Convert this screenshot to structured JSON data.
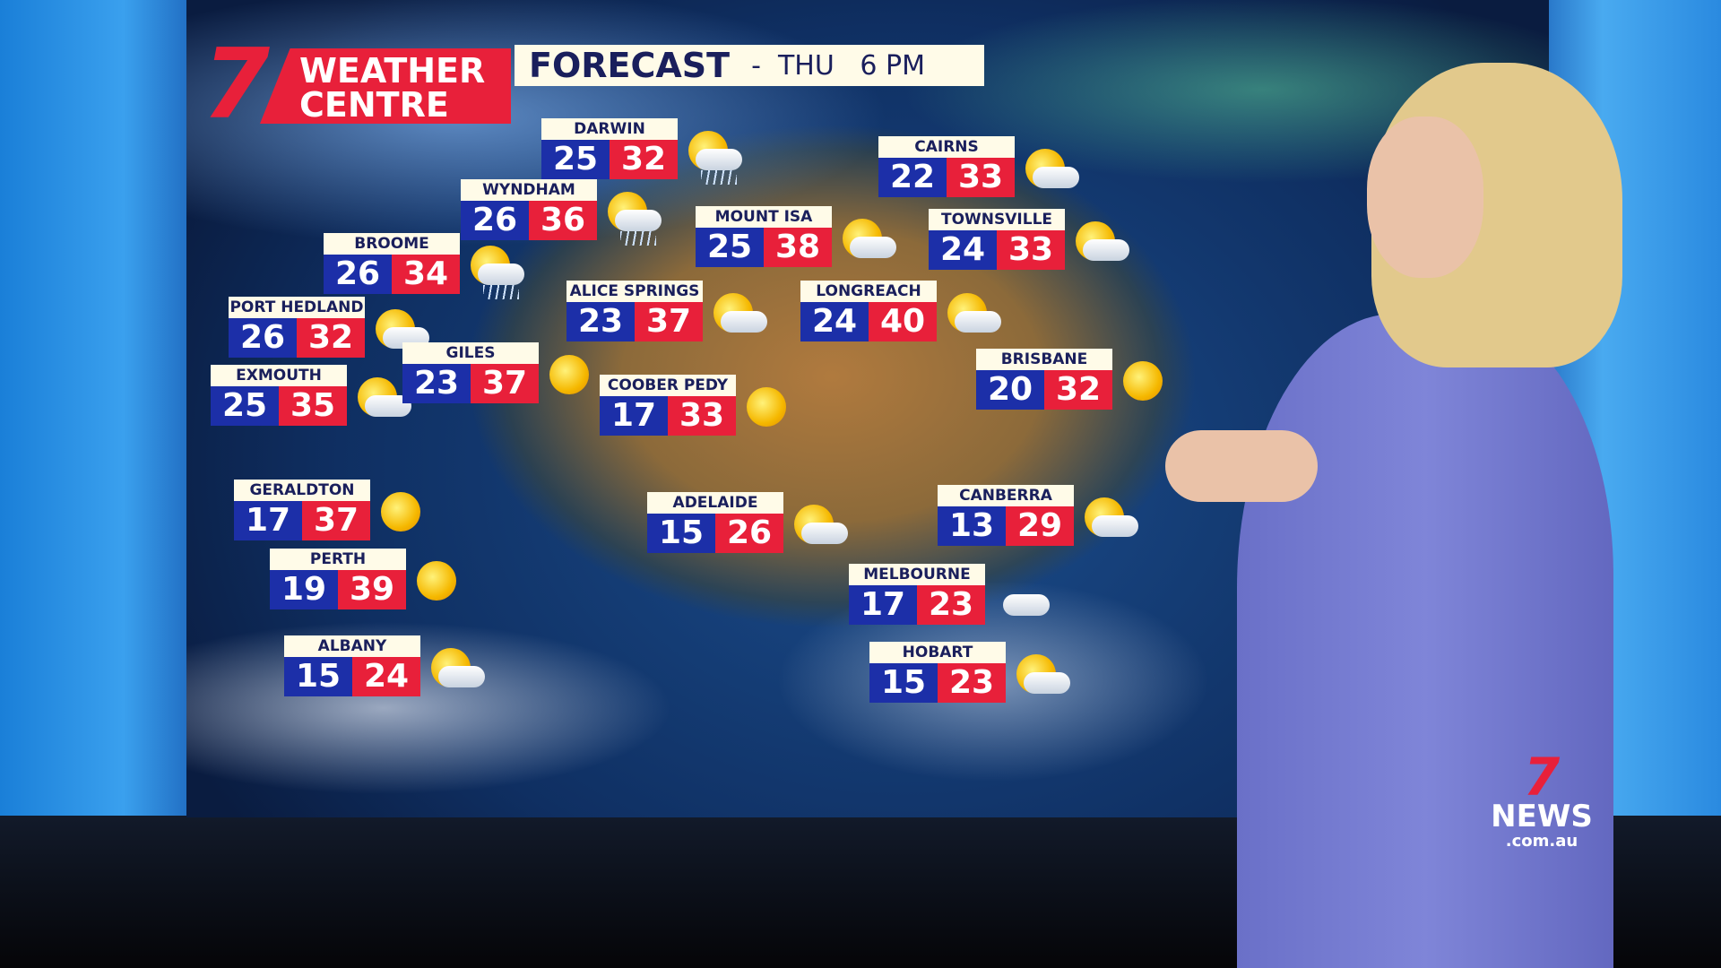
{
  "header": {
    "brand_numeral": "7",
    "brand_line1": "WEATHER",
    "brand_line2": "CENTRE",
    "title": "FORECAST",
    "subtitle": "-  THU   6 PM"
  },
  "colors": {
    "min_temp": "#1c2fa8",
    "max_temp": "#e8203a",
    "label_bg": "#fffbe8"
  },
  "cities": [
    {
      "name": "DARWIN",
      "min": "25",
      "max": "32",
      "icon": "sun-cloud-rain-icon"
    },
    {
      "name": "WYNDHAM",
      "min": "26",
      "max": "36",
      "icon": "sun-cloud-rain-icon"
    },
    {
      "name": "BROOME",
      "min": "26",
      "max": "34",
      "icon": "sun-cloud-rain-icon"
    },
    {
      "name": "PORT HEDLAND",
      "min": "26",
      "max": "32",
      "icon": "sun-cloud-icon"
    },
    {
      "name": "EXMOUTH",
      "min": "25",
      "max": "35",
      "icon": "sun-cloud-icon"
    },
    {
      "name": "GILES",
      "min": "23",
      "max": "37",
      "icon": "sun-icon"
    },
    {
      "name": "ALICE SPRINGS",
      "min": "23",
      "max": "37",
      "icon": "sun-cloud-icon"
    },
    {
      "name": "MOUNT ISA",
      "min": "25",
      "max": "38",
      "icon": "sun-cloud-icon"
    },
    {
      "name": "CAIRNS",
      "min": "22",
      "max": "33",
      "icon": "sun-cloud-icon"
    },
    {
      "name": "TOWNSVILLE",
      "min": "24",
      "max": "33",
      "icon": "sun-cloud-icon"
    },
    {
      "name": "LONGREACH",
      "min": "24",
      "max": "40",
      "icon": "sun-cloud-icon"
    },
    {
      "name": "BRISBANE",
      "min": "20",
      "max": "32",
      "icon": "sun-icon"
    },
    {
      "name": "COOBER PEDY",
      "min": "17",
      "max": "33",
      "icon": "sun-icon"
    },
    {
      "name": "GERALDTON",
      "min": "17",
      "max": "37",
      "icon": "sun-icon"
    },
    {
      "name": "PERTH",
      "min": "19",
      "max": "39",
      "icon": "sun-icon"
    },
    {
      "name": "ALBANY",
      "min": "15",
      "max": "24",
      "icon": "sun-cloud-icon"
    },
    {
      "name": "ADELAIDE",
      "min": "15",
      "max": "26",
      "icon": "sun-cloud-icon"
    },
    {
      "name": "CANBERRA",
      "min": "13",
      "max": "29",
      "icon": "sun-cloud-icon"
    },
    {
      "name": "MELBOURNE",
      "min": "17",
      "max": "23",
      "icon": "cloud-icon"
    },
    {
      "name": "HOBART",
      "min": "15",
      "max": "23",
      "icon": "sun-cloud-icon"
    }
  ],
  "watermark": {
    "numeral": "7",
    "text": "NEWS",
    "domain": ".com.au"
  }
}
